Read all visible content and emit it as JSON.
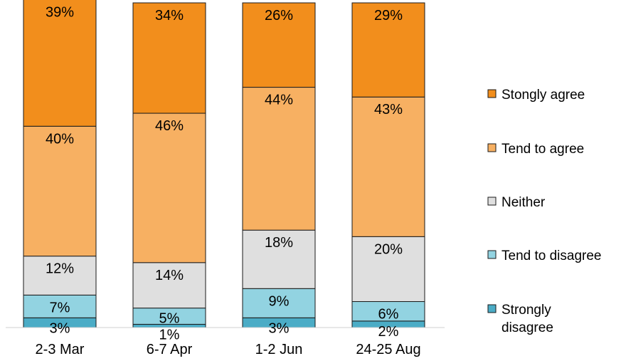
{
  "chart_data": {
    "type": "bar",
    "stacked": true,
    "percent": true,
    "categories": [
      "2-3 Mar",
      "6-7 Apr",
      "1-2 Jun",
      "24-25 Aug"
    ],
    "series": [
      {
        "name": "Strongly\ndisagree",
        "color": "#4bacc6",
        "values": [
          3,
          1,
          3,
          2
        ],
        "labels": [
          "3%",
          "1%",
          "3%",
          "2%"
        ]
      },
      {
        "name": "Tend to disagree",
        "color": "#92d3e1",
        "values": [
          7,
          5,
          9,
          6
        ],
        "labels": [
          "7%",
          "5%",
          "9%",
          "6%"
        ]
      },
      {
        "name": "Neither",
        "color": "#dfdfdf",
        "values": [
          12,
          14,
          18,
          20
        ],
        "labels": [
          "12%",
          "14%",
          "18%",
          "20%"
        ]
      },
      {
        "name": "Tend to agree",
        "color": "#f7b062",
        "values": [
          40,
          46,
          44,
          43
        ],
        "labels": [
          "40%",
          "46%",
          "44%",
          "43%"
        ]
      },
      {
        "name": "Stongly agree",
        "color": "#f28e1c",
        "values": [
          39,
          34,
          26,
          29
        ],
        "labels": [
          "39%",
          "34%",
          "26%",
          "29%"
        ]
      }
    ],
    "legend_order": [
      "Stongly agree",
      "Tend to agree",
      "Neither",
      "Tend to disagree",
      "Strongly\ndisagree"
    ],
    "legend_position": "right",
    "grid": false
  }
}
